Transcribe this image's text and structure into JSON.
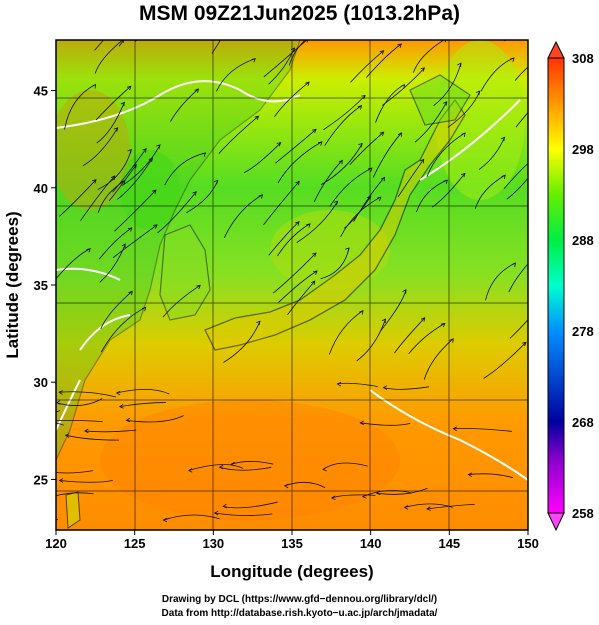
{
  "title": "MSM 09Z21Jun2025 (1013.2hPa)",
  "axes": {
    "xlabel": "Longitude (degrees)",
    "ylabel": "Latitude  (degrees)",
    "xticks": [
      120,
      125,
      130,
      135,
      140,
      145,
      150
    ],
    "yticks": [
      25,
      30,
      35,
      40,
      45
    ],
    "xlim": [
      120,
      150
    ],
    "ylim": [
      22.4,
      47.6
    ]
  },
  "colorbar": {
    "min": 258,
    "max": 308,
    "ticks": [
      308,
      298,
      288,
      278,
      268,
      258
    ],
    "colors": [
      "#ff00ff",
      "#0000a0",
      "#0080ff",
      "#00ffff",
      "#00ff60",
      "#80ff00",
      "#ffff00",
      "#ff9900",
      "#ff3300"
    ]
  },
  "footer": {
    "line1": "Drawing by DCL (https://www.gfd−dennou.org/library/dcl/)",
    "line2": "Data from http://database.rish.kyoto−u.ac.jp/arch/jmadata/"
  },
  "chart_data": {
    "type": "heatmap",
    "variable_note": "surface temperature field (K) with wind streamlines",
    "title": "MSM 09Z21Jun2025 (1013.2hPa)",
    "xlabel": "Longitude (degrees)",
    "ylabel": "Latitude  (degrees)",
    "xlim": [
      120,
      150
    ],
    "ylim": [
      22.4,
      47.6
    ],
    "zlim": [
      258,
      308
    ],
    "grid": true,
    "legend": "colorbar-right"
  }
}
